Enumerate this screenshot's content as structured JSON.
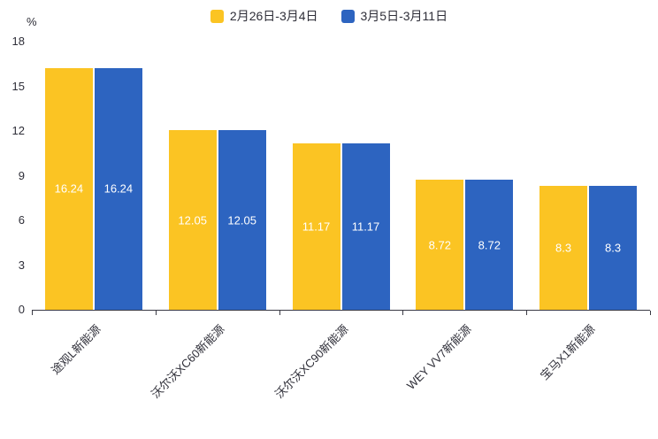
{
  "unit_label": "%",
  "chart_data": {
    "type": "bar",
    "title": "",
    "xlabel": "",
    "ylabel": "%",
    "categories": [
      "途观L新能源",
      "沃尔沃XC60新能源",
      "沃尔沃XC90新能源",
      "WEY VV7新能源",
      "宝马X1新能源"
    ],
    "series": [
      {
        "name": "2月26日-3月4日",
        "color": "#FBC423",
        "values": [
          16.24,
          12.05,
          11.17,
          8.72,
          8.3
        ]
      },
      {
        "name": "3月5日-3月11日",
        "color": "#2D64C0",
        "values": [
          16.24,
          12.05,
          11.17,
          8.72,
          8.3
        ]
      }
    ],
    "yticks": [
      0,
      3,
      6,
      9,
      12,
      15,
      18
    ],
    "ylim": [
      0,
      18
    ],
    "grid": false,
    "legend_position": "top",
    "data_label_color": "#ffffff",
    "axis_color": "#3a3a44"
  }
}
